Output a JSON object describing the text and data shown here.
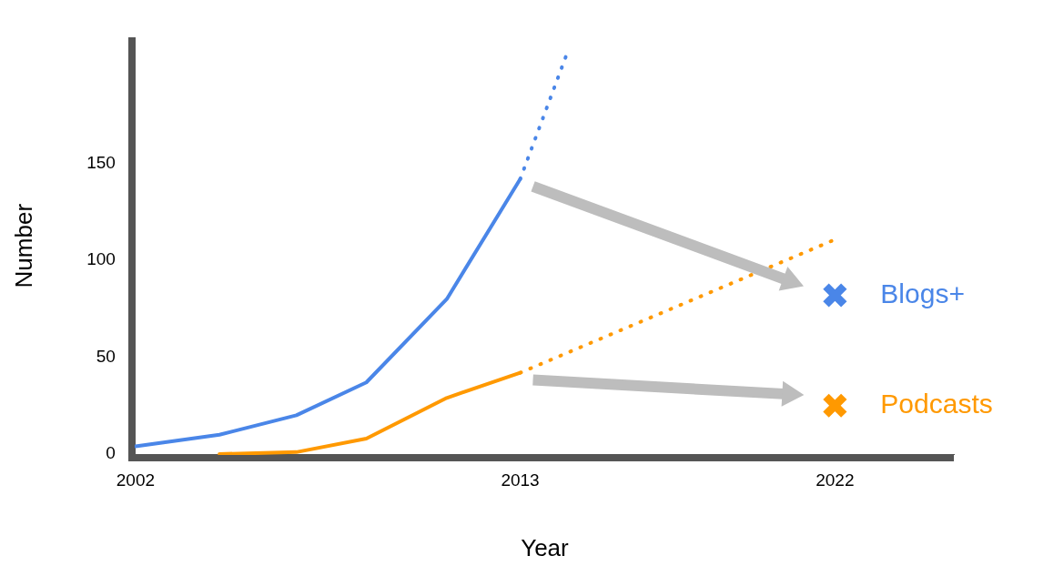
{
  "chart_data": {
    "type": "line",
    "xlabel": "Year",
    "ylabel": "Number",
    "xlim": [
      2002,
      2025.4
    ],
    "xticks": [
      2002,
      2013,
      2022
    ],
    "ylim": [
      0,
      215
    ],
    "yticks": [
      0,
      50,
      100,
      150
    ],
    "grid": false,
    "legend": false,
    "series": [
      {
        "color": "#4a86e8",
        "x": [
          2002,
          2004.4,
          2006.6,
          2008.6,
          2010.9,
          2013
        ],
        "values": [
          4,
          10,
          20,
          37,
          80,
          142
        ],
        "line_style": "solid",
        "marker": "none"
      },
      {
        "color": "#4a86e8",
        "x": [
          2013,
          2014.3
        ],
        "values": [
          142,
          205
        ],
        "line_style": "dotted",
        "marker": "none"
      },
      {
        "color": "#ff9900",
        "x": [
          2004.4,
          2006.6,
          2008.6,
          2010.9,
          2013
        ],
        "values": [
          0,
          1,
          8,
          29,
          42
        ],
        "line_style": "solid",
        "marker": "none"
      },
      {
        "color": "#ff9900",
        "x": [
          2013,
          2021.9
        ],
        "values": [
          42,
          110
        ],
        "line_style": "dotted",
        "marker": "none"
      },
      {
        "type": "scatter",
        "name": "Blogs+",
        "color": "#4a86e8",
        "x": [
          2022
        ],
        "values": [
          82
        ],
        "marker": "cross"
      },
      {
        "type": "scatter",
        "name": "Podcasts",
        "color": "#ff9900",
        "x": [
          2022
        ],
        "values": [
          25
        ],
        "marker": "cross"
      }
    ]
  }
}
